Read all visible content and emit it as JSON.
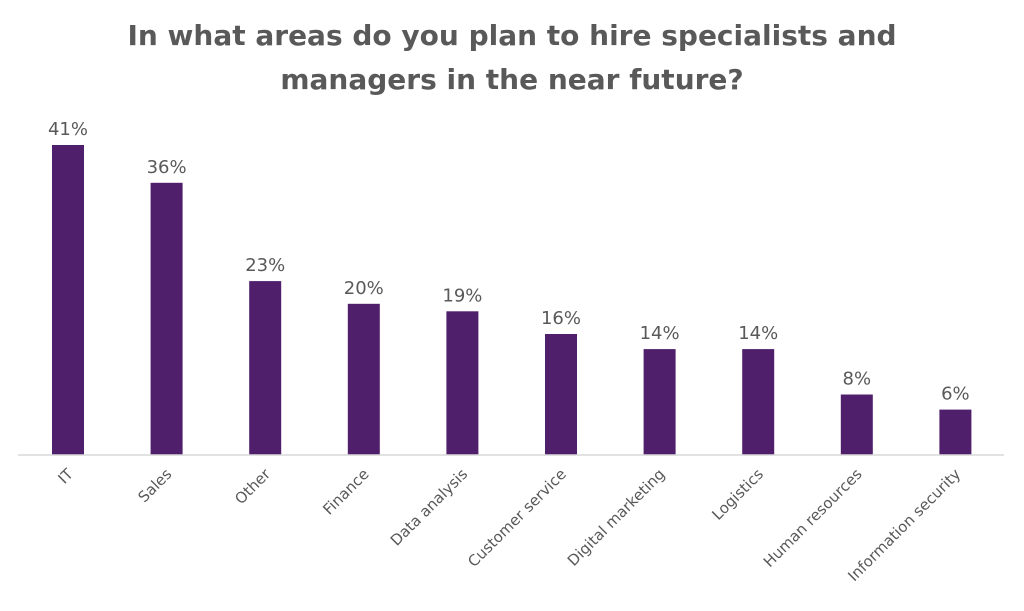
{
  "chart_data": {
    "type": "bar",
    "title": "In what areas do you plan to hire specialists and managers in the near future?",
    "title_lines": [
      "In what areas do you plan to hire specialists and",
      "managers in the near future?"
    ],
    "categories": [
      "IT",
      "Sales",
      "Other",
      "Finance",
      "Data analysis",
      "Customer service",
      "Digital marketing",
      "Logistics",
      "Human resources",
      "Information security"
    ],
    "values": [
      41,
      36,
      23,
      20,
      19,
      16,
      14,
      14,
      8,
      6
    ],
    "data_labels": [
      "41%",
      "36%",
      "23%",
      "20%",
      "19%",
      "16%",
      "14%",
      "14%",
      "8%",
      "6%"
    ],
    "xlabel": "",
    "ylabel": "",
    "ylim": [
      0,
      41
    ],
    "grid": false,
    "legend": "none",
    "bar_color": "#4f1f6b",
    "text_color": "#595959",
    "axis_color": "#d9d9d9"
  }
}
